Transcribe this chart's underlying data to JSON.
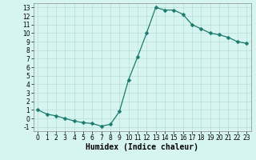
{
  "x": [
    0,
    1,
    2,
    3,
    4,
    5,
    6,
    7,
    8,
    9,
    10,
    11,
    12,
    13,
    14,
    15,
    16,
    17,
    18,
    19,
    20,
    21,
    22,
    23
  ],
  "y": [
    1,
    0.5,
    0.3,
    0.0,
    -0.3,
    -0.5,
    -0.6,
    -0.9,
    -0.7,
    0.8,
    4.5,
    7.2,
    10.0,
    13.0,
    12.7,
    12.7,
    12.2,
    11.0,
    10.5,
    10.0,
    9.8,
    9.5,
    9.0,
    8.8
  ],
  "xlabel": "Humidex (Indice chaleur)",
  "line_color": "#1a7a6e",
  "marker": "D",
  "marker_size": 2.5,
  "bg_color": "#d6f5f0",
  "grid_color": "#b8ddd8",
  "ylim": [
    -1.5,
    13.5
  ],
  "xlim": [
    -0.5,
    23.5
  ],
  "yticks": [
    -1,
    0,
    1,
    2,
    3,
    4,
    5,
    6,
    7,
    8,
    9,
    10,
    11,
    12,
    13
  ],
  "xticks": [
    0,
    1,
    2,
    3,
    4,
    5,
    6,
    7,
    8,
    9,
    10,
    11,
    12,
    13,
    14,
    15,
    16,
    17,
    18,
    19,
    20,
    21,
    22,
    23
  ],
  "tick_fontsize": 5.5,
  "xlabel_fontsize": 7
}
